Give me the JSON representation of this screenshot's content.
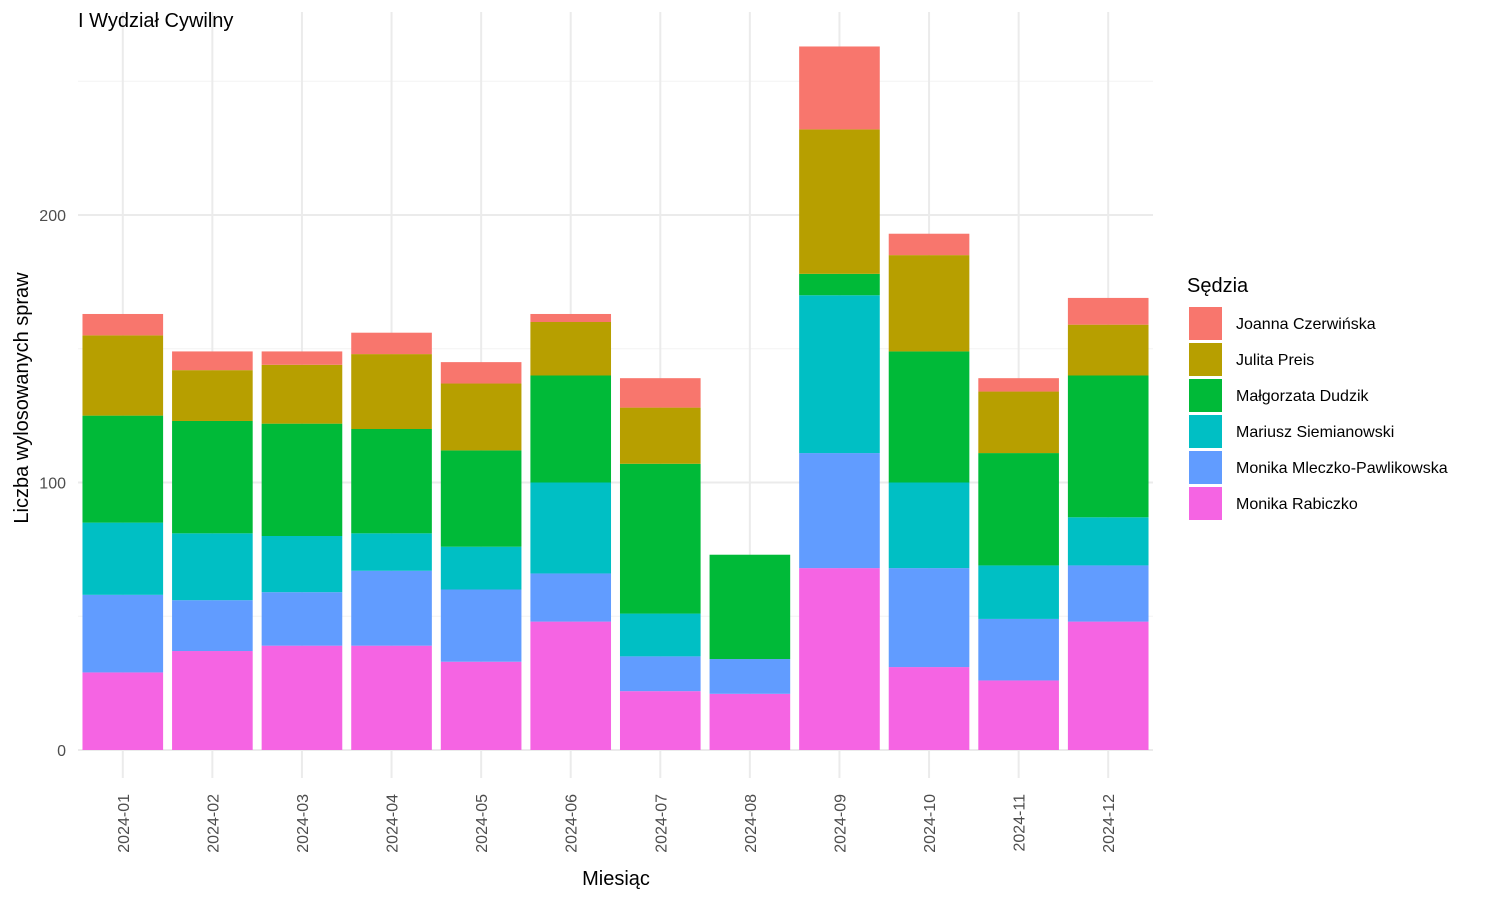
{
  "chart_data": {
    "type": "bar",
    "stacked": true,
    "title": "I Wydział Cywilny",
    "xlabel": "Miesiąc",
    "ylabel": "Liczba wylosowanych spraw",
    "ylim": [
      0,
      265
    ],
    "yticks": [
      0,
      100,
      200
    ],
    "grid": true,
    "legend_title": "Sędzia",
    "legend_position": "right",
    "categories": [
      "2024-01",
      "2024-02",
      "2024-03",
      "2024-04",
      "2024-05",
      "2024-06",
      "2024-07",
      "2024-08",
      "2024-09",
      "2024-10",
      "2024-11",
      "2024-12"
    ],
    "series": [
      {
        "name": "Monika Rabiczko",
        "color": "#F564E3",
        "values": [
          29,
          37,
          39,
          39,
          33,
          48,
          22,
          21,
          68,
          31,
          26,
          48
        ]
      },
      {
        "name": "Monika Mleczko-Pawlikowska",
        "color": "#619CFF",
        "values": [
          29,
          19,
          20,
          28,
          27,
          18,
          13,
          13,
          43,
          37,
          23,
          21
        ]
      },
      {
        "name": "Mariusz Siemianowski",
        "color": "#00BFC4",
        "values": [
          27,
          25,
          21,
          14,
          16,
          34,
          16,
          0,
          59,
          32,
          20,
          18
        ]
      },
      {
        "name": "Małgorzata Dudzik",
        "color": "#00BA38",
        "values": [
          40,
          42,
          42,
          39,
          36,
          40,
          56,
          39,
          8,
          49,
          42,
          53
        ]
      },
      {
        "name": "Julita Preis",
        "color": "#B79F00",
        "values": [
          30,
          19,
          22,
          28,
          25,
          20,
          21,
          0,
          54,
          36,
          23,
          19
        ]
      },
      {
        "name": "Joanna Czerwińska",
        "color": "#F8766D",
        "values": [
          8,
          7,
          5,
          8,
          8,
          3,
          11,
          0,
          31,
          8,
          5,
          10
        ]
      }
    ]
  }
}
